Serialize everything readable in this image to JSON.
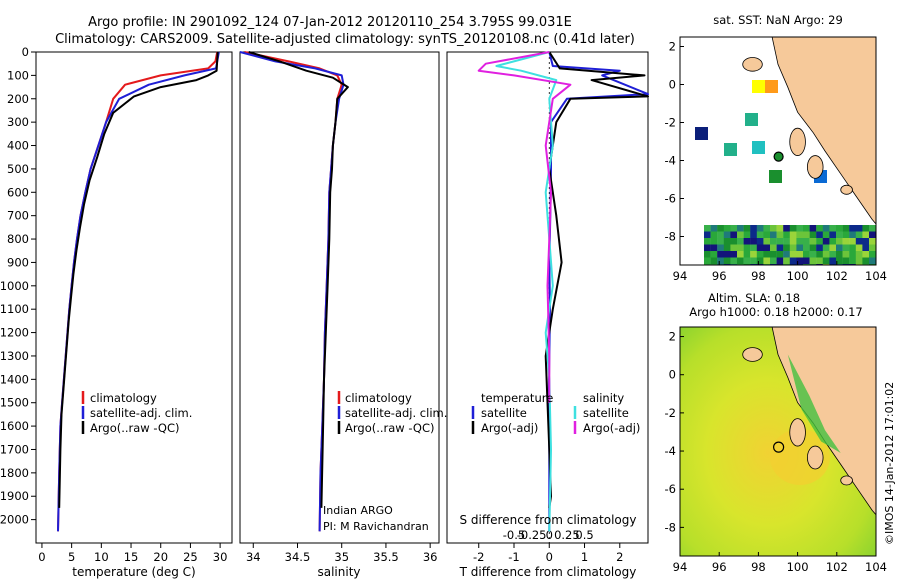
{
  "header": {
    "title_line1": "Argo profile: IN 2901092_124 07-Jan-2012 20120110_254 3.795S 99.031E",
    "title_line2": "Climatology: CARS2009. Satellite-adjusted climatology: synTS_20120108.nc (0.41d later)"
  },
  "colors": {
    "climatology": "#e41a1c",
    "satellite": "#1f1fd6",
    "argo": "#000000",
    "sat_salinity": "#3ee0e0",
    "argo_salinity": "#e020e0",
    "land": "#f6c99a"
  },
  "y_ticks": [
    "0",
    "100",
    "200",
    "300",
    "400",
    "500",
    "600",
    "700",
    "800",
    "900",
    "1000",
    "1100",
    "1200",
    "1300",
    "1400",
    "1500",
    "1600",
    "1700",
    "1800",
    "1900",
    "2000"
  ],
  "chart_data": [
    {
      "type": "line",
      "name": "temperature-profile",
      "xlabel": "temperature (deg C)",
      "xlim": [
        -1,
        32
      ],
      "ylim": [
        0,
        2100
      ],
      "xticks": [
        "0",
        "5",
        "10",
        "15",
        "20",
        "25",
        "30"
      ],
      "legend": [
        "climatology",
        "satellite-adj. clim.",
        "Argo(..raw -QC)"
      ],
      "series": [
        {
          "name": "climatology",
          "x": [
            29.5,
            29.2,
            28.0,
            20.0,
            14.0,
            12.0,
            10.8,
            9.5,
            8.2,
            7.3,
            6.5,
            5.9,
            5.4,
            5.0,
            4.6,
            4.3,
            4.0,
            3.7,
            3.4,
            3.1,
            2.9,
            2.7
          ],
          "y": [
            0,
            40,
            70,
            100,
            140,
            200,
            300,
            400,
            500,
            600,
            700,
            800,
            900,
            1000,
            1100,
            1200,
            1300,
            1400,
            1500,
            1600,
            1800,
            2050
          ]
        },
        {
          "name": "satellite-adj. clim.",
          "x": [
            29.8,
            29.5,
            29.3,
            24.0,
            18.0,
            13.0,
            10.8,
            9.5,
            8.2,
            7.3,
            6.5,
            5.9,
            5.4,
            5.0,
            4.6,
            4.3,
            4.0,
            3.7,
            3.4,
            3.1,
            2.9,
            2.7
          ],
          "y": [
            0,
            40,
            70,
            100,
            140,
            200,
            300,
            400,
            500,
            600,
            700,
            800,
            900,
            1000,
            1100,
            1200,
            1300,
            1400,
            1500,
            1600,
            1800,
            2050
          ]
        },
        {
          "name": "Argo(..raw -QC)",
          "x": [
            29.6,
            29.4,
            28.0,
            26.0,
            20.0,
            15.5,
            12.0,
            10.5,
            9.3,
            8.0,
            7.1,
            6.4,
            5.8,
            5.3,
            4.9,
            4.5,
            4.2,
            3.9,
            3.6,
            3.3,
            3.1,
            2.9
          ],
          "y": [
            0,
            80,
            100,
            120,
            150,
            190,
            260,
            350,
            450,
            550,
            650,
            750,
            850,
            950,
            1050,
            1150,
            1250,
            1350,
            1450,
            1550,
            1700,
            1950
          ]
        }
      ]
    },
    {
      "type": "line",
      "name": "salinity-profile",
      "xlabel": "salinity",
      "xlim": [
        33.85,
        36.1
      ],
      "ylim": [
        0,
        2100
      ],
      "xticks": [
        "34",
        "34.5",
        "35",
        "35.5",
        "36"
      ],
      "legend": [
        "climatology",
        "satellite-adj. clim.",
        "Argo(..raw -QC)"
      ],
      "annotation": [
        "Indian ARGO",
        "PI: M Ravichandran"
      ],
      "series": [
        {
          "name": "climatology",
          "x": [
            33.9,
            34.4,
            34.75,
            34.95,
            35.0,
            34.95,
            34.93,
            34.9,
            34.88,
            34.86,
            34.85,
            34.83,
            34.81,
            34.8,
            34.78,
            34.76,
            34.75
          ],
          "y": [
            0,
            40,
            70,
            100,
            140,
            200,
            300,
            400,
            500,
            600,
            800,
            1000,
            1200,
            1400,
            1600,
            1800,
            2050
          ]
        },
        {
          "name": "satellite-adj. clim.",
          "x": [
            33.85,
            34.25,
            34.7,
            35.0,
            35.02,
            34.97,
            34.93,
            34.9,
            34.88,
            34.86,
            34.85,
            34.83,
            34.81,
            34.8,
            34.78,
            34.76,
            34.75
          ],
          "y": [
            0,
            40,
            70,
            100,
            140,
            200,
            300,
            400,
            500,
            600,
            800,
            1000,
            1200,
            1400,
            1600,
            1800,
            2050
          ]
        },
        {
          "name": "Argo(..raw -QC)",
          "x": [
            33.95,
            34.3,
            34.6,
            34.9,
            35.07,
            34.95,
            34.93,
            34.9,
            34.89,
            34.87,
            34.86,
            34.84,
            34.82,
            34.8,
            34.79,
            34.77
          ],
          "y": [
            0,
            40,
            80,
            110,
            150,
            200,
            300,
            400,
            500,
            600,
            800,
            1000,
            1200,
            1400,
            1600,
            1950
          ]
        }
      ]
    },
    {
      "type": "line",
      "name": "difference-profile",
      "xlabel": "T difference from climatology",
      "xlabel_top": "S difference from climatology",
      "xlim": [
        -2.9,
        2.8
      ],
      "ylim": [
        0,
        2100
      ],
      "xticks": [
        "-2",
        "-1",
        "0",
        "1",
        "2"
      ],
      "xticks_top": [
        "-0.5",
        "-0.25",
        "0",
        "0.25",
        "0.5"
      ],
      "legend_temperature": [
        "temperature",
        "satellite",
        "Argo(-adj)"
      ],
      "legend_salinity": [
        "salinity",
        "satellite",
        "Argo(-adj)"
      ],
      "series": [
        {
          "name": "temperature satellite",
          "x": [
            0,
            0.1,
            2.0,
            1.5,
            2.8,
            0.5,
            0.05,
            0.05,
            0.03,
            0.0,
            0.02,
            0.0,
            -0.02,
            0.0,
            0.0,
            0.0
          ],
          "y": [
            0,
            60,
            80,
            100,
            180,
            200,
            300,
            500,
            700,
            900,
            1100,
            1300,
            1500,
            1700,
            1900,
            2050
          ]
        },
        {
          "name": "temperature Argo(-adj)",
          "x": [
            0,
            0.3,
            2.7,
            1.2,
            2.8,
            0.6,
            0.2,
            0.0,
            0.2,
            0.35,
            0.1,
            -0.1,
            -0.05,
            0.0,
            0.05,
            0.0
          ],
          "y": [
            0,
            70,
            100,
            120,
            190,
            200,
            300,
            500,
            700,
            900,
            1100,
            1300,
            1500,
            1700,
            1900,
            1950
          ]
        },
        {
          "name": "salinity satellite",
          "x": [
            0,
            -1.5,
            -0.8,
            0.2,
            0.0,
            0.1,
            -0.1,
            0.0,
            0.1,
            -0.1,
            0.0,
            0.05,
            0.0
          ],
          "y": [
            0,
            60,
            80,
            120,
            200,
            400,
            600,
            800,
            1000,
            1200,
            1400,
            1700,
            2050
          ]
        },
        {
          "name": "salinity Argo(-adj)",
          "x": [
            0,
            -1.8,
            -2.0,
            -1.0,
            0.6,
            0.1,
            -0.1,
            0.05,
            0.0,
            -0.05,
            0.0,
            0.0
          ],
          "y": [
            0,
            50,
            80,
            100,
            140,
            200,
            400,
            600,
            800,
            1000,
            1300,
            1500
          ]
        }
      ]
    },
    {
      "type": "heatmap",
      "name": "sst-map",
      "title": "sat. SST: NaN Argo: 29",
      "xlim": [
        94,
        104
      ],
      "ylim": [
        -9.5,
        2.5
      ],
      "xticks": [
        "94",
        "96",
        "98",
        "100",
        "102",
        "104"
      ],
      "yticks": [
        "2",
        "0",
        "-2",
        "-4",
        "-6",
        "-8"
      ],
      "argo_float": {
        "lon": 99.031,
        "lat": -3.795
      }
    },
    {
      "type": "heatmap",
      "name": "sla-map",
      "title_line1": "Altim. SLA: 0.18",
      "title_line2": "Argo h1000: 0.18 h2000: 0.17",
      "xlim": [
        94,
        104
      ],
      "ylim": [
        -9.5,
        2.5
      ],
      "xticks": [
        "94",
        "96",
        "98",
        "100",
        "102",
        "104"
      ],
      "yticks": [
        "2",
        "0",
        "-2",
        "-4",
        "-6",
        "-8"
      ],
      "argo_float": {
        "lon": 99.031,
        "lat": -3.795
      }
    }
  ],
  "footer": {
    "credit": "©IMOS 14-Jan-2012 17:01:02"
  }
}
